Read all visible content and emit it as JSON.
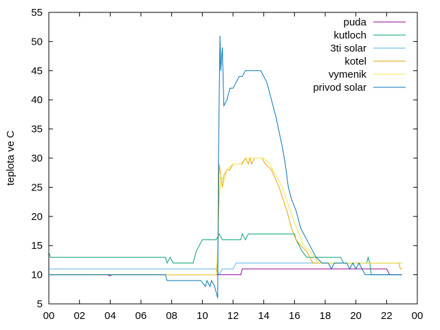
{
  "chart_data": {
    "type": "line",
    "title": "",
    "xlabel": "",
    "ylabel": "teplota ve C",
    "xlim": [
      0,
      24
    ],
    "ylim": [
      5,
      55
    ],
    "x_ticks": [
      "00",
      "02",
      "04",
      "06",
      "08",
      "10",
      "12",
      "14",
      "16",
      "18",
      "20",
      "22",
      "00"
    ],
    "y_ticks": [
      "5",
      "10",
      "15",
      "20",
      "25",
      "30",
      "35",
      "40",
      "45",
      "50",
      "55"
    ],
    "legend_position": "top-right",
    "grid": false,
    "series": [
      {
        "name": "puda",
        "color": "#940094",
        "points": [
          [
            0,
            10
          ],
          [
            3.8,
            10
          ],
          [
            4.0,
            9.8
          ],
          [
            4.1,
            10
          ],
          [
            11.2,
            10
          ],
          [
            12.5,
            10
          ],
          [
            12.6,
            11
          ],
          [
            22.0,
            11
          ],
          [
            22.2,
            10
          ],
          [
            23.0,
            10
          ]
        ]
      },
      {
        "name": "kutloch",
        "color": "#009e73",
        "points": [
          [
            0,
            14
          ],
          [
            0.1,
            13
          ],
          [
            7.6,
            13
          ],
          [
            7.7,
            12
          ],
          [
            7.9,
            13
          ],
          [
            8.1,
            12
          ],
          [
            9.4,
            12
          ],
          [
            9.6,
            14
          ],
          [
            9.8,
            15
          ],
          [
            10.0,
            16
          ],
          [
            10.9,
            16
          ],
          [
            11.1,
            17
          ],
          [
            11.3,
            16
          ],
          [
            12.5,
            16
          ],
          [
            12.6,
            17
          ],
          [
            12.8,
            16
          ],
          [
            13.0,
            17
          ],
          [
            16.0,
            17
          ],
          [
            16.1,
            16
          ],
          [
            16.5,
            14
          ],
          [
            16.8,
            13
          ],
          [
            19.0,
            13
          ],
          [
            19.2,
            12
          ],
          [
            20.7,
            12
          ],
          [
            20.8,
            13
          ],
          [
            20.9,
            12
          ],
          [
            21.0,
            10
          ],
          [
            23.0,
            10
          ]
        ]
      },
      {
        "name": "3ti solar",
        "color": "#56b4e9",
        "points": [
          [
            0,
            11
          ],
          [
            10.9,
            11
          ],
          [
            11.1,
            10
          ],
          [
            11.3,
            11
          ],
          [
            12.0,
            11
          ],
          [
            12.2,
            12
          ],
          [
            23.0,
            12
          ]
        ]
      },
      {
        "name": "kotel",
        "color": "#e69f00",
        "points": [
          [
            0,
            10
          ],
          [
            9.5,
            10
          ],
          [
            10.5,
            10
          ],
          [
            10.9,
            10
          ],
          [
            11.0,
            12
          ],
          [
            11.1,
            29
          ],
          [
            11.2,
            27
          ],
          [
            11.3,
            25
          ],
          [
            11.4,
            27
          ],
          [
            11.6,
            28
          ],
          [
            11.8,
            28
          ],
          [
            12.0,
            29
          ],
          [
            12.6,
            29
          ],
          [
            12.8,
            30
          ],
          [
            13.0,
            29
          ],
          [
            13.1,
            30
          ],
          [
            13.2,
            29
          ],
          [
            13.4,
            30
          ],
          [
            13.9,
            30
          ],
          [
            14.1,
            29
          ],
          [
            14.5,
            28
          ],
          [
            15.0,
            25
          ],
          [
            15.5,
            21
          ],
          [
            15.8,
            18
          ],
          [
            16.1,
            16
          ],
          [
            16.4,
            15
          ],
          [
            16.8,
            14
          ],
          [
            17.2,
            12
          ],
          [
            21.0,
            12
          ],
          [
            22.8,
            12
          ],
          [
            22.9,
            11
          ],
          [
            23.0,
            11
          ]
        ]
      },
      {
        "name": "vymenik",
        "color": "#f0e442",
        "points": [
          [
            0,
            10
          ],
          [
            10.9,
            10
          ],
          [
            11.0,
            15
          ],
          [
            11.1,
            22
          ],
          [
            11.2,
            27
          ],
          [
            11.4,
            26
          ],
          [
            11.6,
            28
          ],
          [
            12.0,
            29
          ],
          [
            12.5,
            29
          ],
          [
            12.8,
            30
          ],
          [
            14.0,
            30
          ],
          [
            14.4,
            29
          ],
          [
            14.8,
            27
          ],
          [
            15.2,
            25
          ],
          [
            15.6,
            22
          ],
          [
            16.0,
            19
          ],
          [
            16.3,
            17
          ],
          [
            16.6,
            15
          ],
          [
            17.0,
            14
          ],
          [
            17.3,
            13
          ],
          [
            17.6,
            12
          ],
          [
            21.0,
            12
          ],
          [
            22.9,
            12
          ],
          [
            23.0,
            12
          ]
        ]
      },
      {
        "name": "privod solar",
        "color": "#0072b2",
        "points": [
          [
            0,
            10
          ],
          [
            7.6,
            10
          ],
          [
            7.7,
            9
          ],
          [
            9.6,
            9
          ],
          [
            9.9,
            9
          ],
          [
            10.2,
            8
          ],
          [
            10.3,
            9
          ],
          [
            10.5,
            8
          ],
          [
            10.6,
            9
          ],
          [
            10.8,
            8
          ],
          [
            10.9,
            7
          ],
          [
            11.0,
            6
          ],
          [
            11.05,
            30
          ],
          [
            11.15,
            51
          ],
          [
            11.2,
            45
          ],
          [
            11.3,
            49
          ],
          [
            11.4,
            39
          ],
          [
            11.6,
            40
          ],
          [
            11.8,
            42
          ],
          [
            12.0,
            42
          ],
          [
            12.2,
            43
          ],
          [
            12.4,
            44
          ],
          [
            12.6,
            44
          ],
          [
            12.8,
            45
          ],
          [
            13.8,
            45
          ],
          [
            14.0,
            44
          ],
          [
            14.2,
            43
          ],
          [
            14.4,
            41
          ],
          [
            14.8,
            37
          ],
          [
            15.2,
            32
          ],
          [
            15.4,
            29
          ],
          [
            15.6,
            25
          ],
          [
            15.8,
            23
          ],
          [
            16.1,
            21
          ],
          [
            16.4,
            18
          ],
          [
            16.8,
            16
          ],
          [
            17.0,
            15
          ],
          [
            17.4,
            13
          ],
          [
            17.8,
            12
          ],
          [
            18.2,
            12
          ],
          [
            18.4,
            11
          ],
          [
            18.6,
            12
          ],
          [
            19.4,
            12
          ],
          [
            19.6,
            11
          ],
          [
            19.8,
            12
          ],
          [
            20.0,
            11
          ],
          [
            20.2,
            12
          ],
          [
            20.4,
            11
          ],
          [
            20.6,
            10
          ],
          [
            22.0,
            10
          ],
          [
            22.2,
            10
          ],
          [
            23.0,
            10
          ]
        ]
      }
    ]
  }
}
